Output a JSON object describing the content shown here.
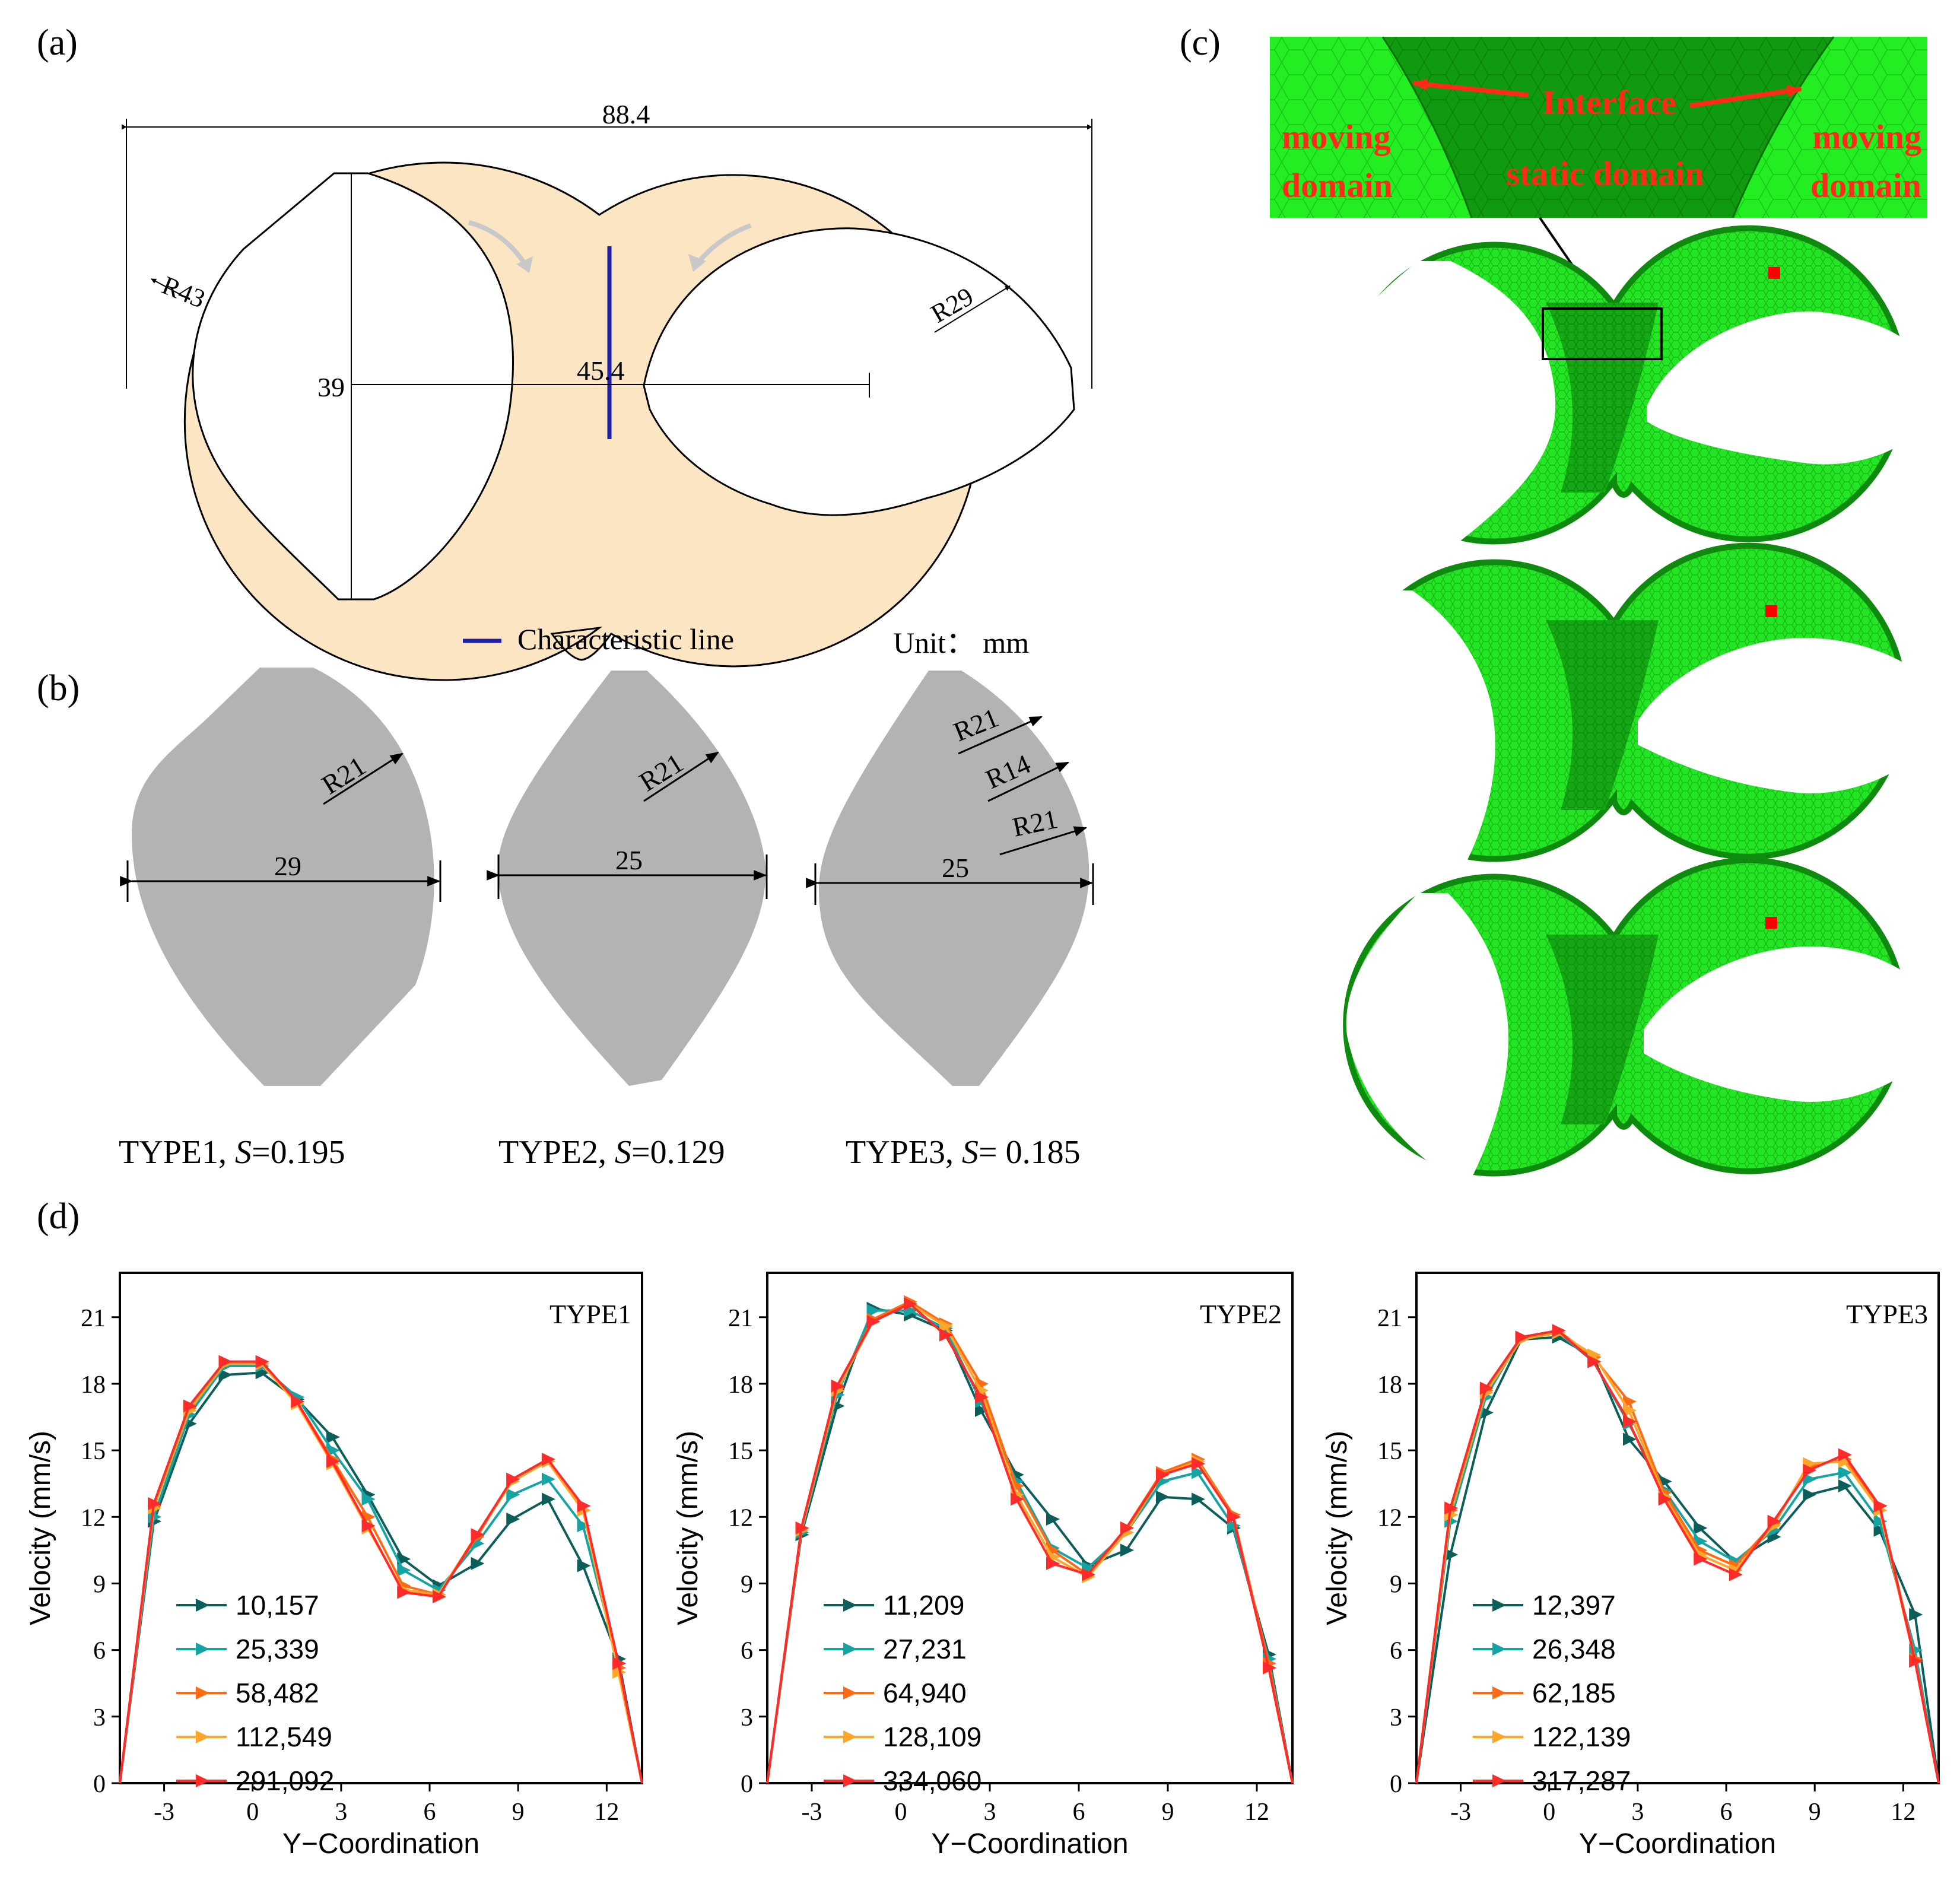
{
  "panel_labels": {
    "a": "(a)",
    "b": "(b)",
    "c": "(c)",
    "d": "(d)"
  },
  "panel_a": {
    "dim_total": "88.4",
    "dim_r43": "R43",
    "dim_r29": "R29",
    "dim_39": "39",
    "dim_45": "45.4",
    "legend_label": "Characteristic line",
    "unit": "Unit： mm",
    "colors": {
      "fill": "#fbe5c2",
      "line": "#1f1fa8"
    }
  },
  "panel_b": {
    "shapes": [
      {
        "name": "TYPE1",
        "radius_labels": [
          "R21"
        ],
        "width": "29",
        "caption_prefix": "TYPE1, ",
        "s_symbol": "S",
        "s_value": "=0.195"
      },
      {
        "name": "TYPE2",
        "radius_labels": [
          "R21"
        ],
        "width": "25",
        "caption_prefix": "TYPE2, ",
        "s_symbol": "S",
        "s_value": "=0.129"
      },
      {
        "name": "TYPE3",
        "radius_labels": [
          "R21",
          "R14",
          "R21"
        ],
        "width": "25",
        "caption_prefix": "TYPE3, ",
        "s_symbol": "S",
        "s_value": "= 0.185"
      }
    ],
    "colors": {
      "fill": "#b3b3b3"
    }
  },
  "panel_c": {
    "interface": "Interface",
    "moving_domain_left": [
      "moving",
      "domain"
    ],
    "static_domain": "static domain",
    "moving_domain_right": [
      "moving",
      "domain"
    ],
    "colors": {
      "mesh_light": "#22ee22",
      "mesh_dark": "#15a615",
      "label": "#ff2a1a",
      "marker": "#ff0000"
    }
  },
  "chart_data": [
    {
      "type": "line",
      "title": "TYPE1",
      "xlabel": "Y−Coordination",
      "ylabel": "Velocity (mm/s)",
      "xlim": [
        -4.5,
        13.2
      ],
      "ylim": [
        0,
        23
      ],
      "xticks": [
        -3,
        0,
        3,
        6,
        9,
        12
      ],
      "yticks": [
        0,
        3,
        6,
        9,
        12,
        15,
        18,
        21
      ],
      "x": [
        -4.5,
        -3.35,
        -2.15,
        -0.95,
        0.3,
        1.5,
        2.7,
        3.9,
        5.1,
        6.3,
        7.6,
        8.8,
        10.0,
        11.2,
        12.4,
        13.2
      ],
      "series": [
        {
          "name": "10,157",
          "values": [
            0,
            11.8,
            16.2,
            18.4,
            18.5,
            17.3,
            15.6,
            13.0,
            10.1,
            8.9,
            9.9,
            11.9,
            12.8,
            9.8,
            5.6,
            0
          ]
        },
        {
          "name": "25,339",
          "values": [
            0,
            12.0,
            16.6,
            18.8,
            18.8,
            17.4,
            15.0,
            12.8,
            9.6,
            8.7,
            10.8,
            13.0,
            13.7,
            11.6,
            5.4,
            0
          ]
        },
        {
          "name": "58,482",
          "values": [
            0,
            12.5,
            16.9,
            19.0,
            18.9,
            17.2,
            14.6,
            12.0,
            8.9,
            8.5,
            11.1,
            13.7,
            14.5,
            12.3,
            5.2,
            0
          ]
        },
        {
          "name": "112,549",
          "values": [
            0,
            12.4,
            16.8,
            18.9,
            18.9,
            17.1,
            14.4,
            11.5,
            8.7,
            8.5,
            11.2,
            13.6,
            14.5,
            12.3,
            5.0,
            0
          ]
        },
        {
          "name": "291,092",
          "values": [
            0,
            12.6,
            17.0,
            19.0,
            19.0,
            17.2,
            14.5,
            11.6,
            8.6,
            8.4,
            11.2,
            13.7,
            14.6,
            12.5,
            5.4,
            0
          ]
        }
      ]
    },
    {
      "type": "line",
      "title": "TYPE2",
      "xlabel": "Y−Coordination",
      "ylabel": "Velocity (mm/s)",
      "xlim": [
        -4.5,
        13.2
      ],
      "ylim": [
        0,
        23
      ],
      "xticks": [
        -3,
        0,
        3,
        6,
        9,
        12
      ],
      "yticks": [
        0,
        3,
        6,
        9,
        12,
        15,
        18,
        21
      ],
      "x": [
        -4.5,
        -3.35,
        -2.15,
        -0.95,
        0.3,
        1.5,
        2.7,
        3.9,
        5.1,
        6.3,
        7.6,
        8.8,
        10.0,
        11.2,
        12.4,
        13.2
      ],
      "series": [
        {
          "name": "11,209",
          "values": [
            0,
            11.2,
            17.0,
            21.4,
            21.1,
            20.4,
            16.8,
            13.9,
            11.9,
            9.8,
            10.5,
            12.9,
            12.8,
            11.5,
            5.8,
            0
          ]
        },
        {
          "name": "27,231",
          "values": [
            0,
            11.3,
            17.5,
            21.3,
            21.3,
            20.5,
            17.2,
            13.6,
            10.6,
            9.7,
            11.3,
            13.6,
            14.0,
            11.6,
            5.6,
            0
          ]
        },
        {
          "name": "64,940",
          "values": [
            0,
            11.5,
            17.8,
            20.9,
            21.7,
            20.7,
            18.0,
            13.4,
            10.5,
            9.4,
            11.5,
            14.0,
            14.6,
            12.1,
            5.4,
            0
          ]
        },
        {
          "name": "128,109",
          "values": [
            0,
            11.4,
            17.7,
            20.8,
            21.6,
            20.6,
            17.7,
            13.0,
            10.2,
            9.3,
            11.3,
            13.9,
            14.5,
            12.0,
            5.2,
            0
          ]
        },
        {
          "name": "334,060",
          "values": [
            0,
            11.5,
            17.9,
            20.8,
            21.6,
            20.2,
            17.4,
            12.8,
            9.9,
            9.4,
            11.5,
            13.9,
            14.4,
            12.0,
            5.2,
            0
          ]
        }
      ]
    },
    {
      "type": "line",
      "title": "TYPE3",
      "xlabel": "Y−Coordination",
      "ylabel": "Velocity (mm/s)",
      "xlim": [
        -4.5,
        13.2
      ],
      "ylim": [
        0,
        23
      ],
      "xticks": [
        -3,
        0,
        3,
        6,
        9,
        12
      ],
      "yticks": [
        0,
        3,
        6,
        9,
        12,
        15,
        18,
        21
      ],
      "x": [
        -4.5,
        -3.35,
        -2.15,
        -0.95,
        0.3,
        1.5,
        2.7,
        3.9,
        5.1,
        6.3,
        7.6,
        8.8,
        10.0,
        11.2,
        12.4,
        13.2
      ],
      "series": [
        {
          "name": "12,397",
          "values": [
            0,
            10.3,
            16.7,
            20.0,
            20.1,
            19.2,
            15.5,
            13.6,
            11.5,
            10.0,
            11.1,
            13.0,
            13.4,
            11.4,
            7.6,
            0
          ]
        },
        {
          "name": "26,348",
          "values": [
            0,
            11.8,
            17.4,
            20.1,
            20.3,
            19.0,
            16.2,
            13.2,
            10.9,
            10.0,
            11.4,
            13.7,
            14.0,
            11.8,
            6.0,
            0
          ]
        },
        {
          "name": "62,185",
          "values": [
            0,
            12.3,
            17.7,
            20.0,
            20.4,
            19.2,
            17.2,
            13.1,
            10.5,
            9.8,
            11.7,
            14.3,
            14.6,
            12.5,
            5.6,
            0
          ]
        },
        {
          "name": "122,139",
          "values": [
            0,
            12.1,
            17.6,
            20.0,
            20.3,
            19.3,
            16.8,
            12.9,
            10.3,
            9.6,
            11.6,
            14.4,
            14.5,
            12.3,
            5.5,
            0
          ]
        },
        {
          "name": "317,287",
          "values": [
            0,
            12.4,
            17.8,
            20.1,
            20.4,
            19.0,
            16.3,
            12.8,
            10.1,
            9.4,
            11.8,
            14.1,
            14.8,
            12.5,
            5.5,
            0
          ]
        }
      ]
    }
  ],
  "series_colors": [
    "#0c5e5b",
    "#16a3a3",
    "#ff6a12",
    "#ffa52a",
    "#ff2a2a"
  ]
}
